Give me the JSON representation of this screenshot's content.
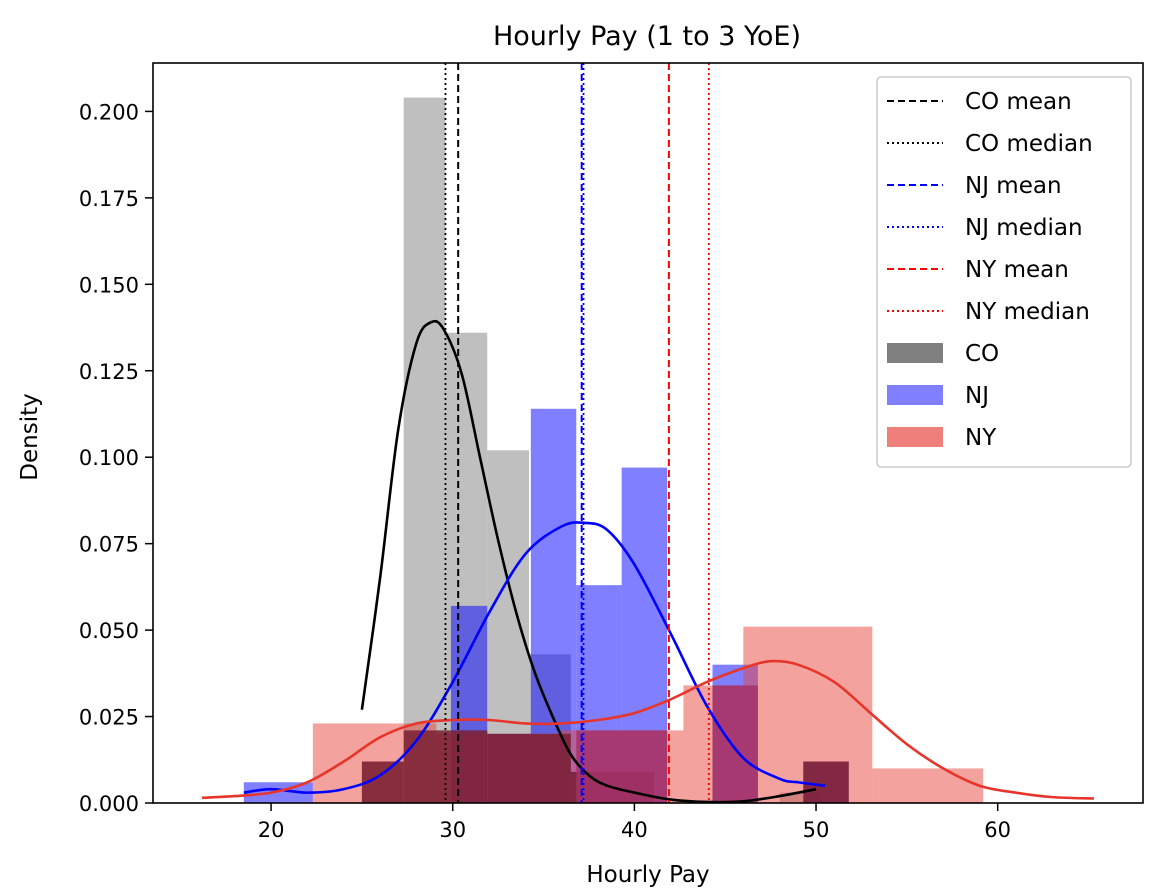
{
  "chart_data": {
    "type": "histogram",
    "title": "Hourly Pay (1 to 3 YoE)",
    "xlabel": "Hourly Pay",
    "ylabel": "Density",
    "xlim": [
      13.5,
      68
    ],
    "ylim": [
      0,
      0.214
    ],
    "xticks": [
      20,
      30,
      40,
      50,
      60
    ],
    "xtick_labels": [
      "20",
      "30",
      "40",
      "50",
      "60"
    ],
    "yticks": [
      0.0,
      0.025,
      0.05,
      0.075,
      0.1,
      0.125,
      0.15,
      0.175,
      0.2
    ],
    "ytick_labels": [
      "0.000",
      "0.025",
      "0.050",
      "0.075",
      "0.100",
      "0.125",
      "0.150",
      "0.175",
      "0.200"
    ],
    "grid": false,
    "legend_position": "top-right",
    "series": [
      {
        "name": "CO",
        "color": "#808080",
        "kde_color": "#000000",
        "bins": [
          {
            "x0": 25.0,
            "x1": 27.3,
            "density": 0.012
          },
          {
            "x0": 27.3,
            "x1": 29.6,
            "density": 0.204
          },
          {
            "x0": 29.6,
            "x1": 31.9,
            "density": 0.136
          },
          {
            "x0": 31.9,
            "x1": 34.2,
            "density": 0.102
          },
          {
            "x0": 34.2,
            "x1": 36.5,
            "density": 0.043
          },
          {
            "x0": 36.5,
            "x1": 38.8,
            "density": 0.009
          },
          {
            "x0": 38.8,
            "x1": 41.1,
            "density": 0.009
          },
          {
            "x0": 41.1,
            "x1": 43.4,
            "density": 0.0
          },
          {
            "x0": 43.4,
            "x1": 45.7,
            "density": 0.0
          },
          {
            "x0": 45.7,
            "x1": 48.0,
            "density": 0.0
          },
          {
            "x0": 48.0,
            "x1": 50.3,
            "density": 0.003
          }
        ],
        "kde": {
          "x": [
            25,
            26,
            27,
            28,
            28.8,
            29.5,
            30.5,
            31.5,
            32.5,
            33.5,
            34.5,
            35.5,
            36.5,
            37.5,
            38.5,
            40,
            42,
            44,
            46,
            48,
            50
          ],
          "y": [
            0.027,
            0.065,
            0.108,
            0.133,
            0.139,
            0.137,
            0.124,
            0.1,
            0.076,
            0.055,
            0.038,
            0.025,
            0.014,
            0.008,
            0.005,
            0.003,
            0.001,
            0.0003,
            0.0005,
            0.002,
            0.004
          ]
        },
        "mean": 30.3,
        "median": 29.6
      },
      {
        "name": "NJ",
        "color": "#0000ff",
        "kde_color": "#0000ff",
        "bins": [
          {
            "x0": 18.5,
            "x1": 22.3,
            "density": 0.006
          },
          {
            "x0": 22.3,
            "x1": 26.1,
            "density": 0.0
          },
          {
            "x0": 26.1,
            "x1": 29.9,
            "density": 0.0
          },
          {
            "x0": 29.9,
            "x1": 31.9,
            "density": 0.057
          },
          {
            "x0": 31.9,
            "x1": 34.3,
            "density": 0.02
          },
          {
            "x0": 34.3,
            "x1": 36.8,
            "density": 0.114
          },
          {
            "x0": 36.8,
            "x1": 39.3,
            "density": 0.063
          },
          {
            "x0": 39.3,
            "x1": 41.8,
            "density": 0.097
          },
          {
            "x0": 41.8,
            "x1": 44.3,
            "density": 0.0
          },
          {
            "x0": 44.3,
            "x1": 46.8,
            "density": 0.04
          },
          {
            "x0": 46.8,
            "x1": 49.3,
            "density": 0.0
          },
          {
            "x0": 49.3,
            "x1": 51.8,
            "density": 0.012
          }
        ],
        "kde": {
          "x": [
            18.5,
            20,
            22,
            24,
            26,
            28,
            30,
            32,
            34,
            36,
            37.3,
            38.5,
            40,
            42,
            44,
            46,
            48,
            49,
            50.5
          ],
          "y": [
            0.003,
            0.004,
            0.003,
            0.004,
            0.008,
            0.018,
            0.035,
            0.055,
            0.072,
            0.08,
            0.081,
            0.079,
            0.069,
            0.049,
            0.028,
            0.013,
            0.007,
            0.006,
            0.005
          ]
        },
        "mean": 37.1,
        "median": 37.2
      },
      {
        "name": "NY",
        "color": "#e8453c",
        "kde_color": "#e8352b",
        "bins": [
          {
            "x0": 22.3,
            "x1": 29.1,
            "density": 0.023
          },
          {
            "x0": 29.1,
            "x1": 35.9,
            "density": 0.02
          },
          {
            "x0": 35.9,
            "x1": 42.7,
            "density": 0.021
          },
          {
            "x0": 42.7,
            "x1": 46.0,
            "density": 0.034
          },
          {
            "x0": 46.0,
            "x1": 53.1,
            "density": 0.051
          },
          {
            "x0": 53.1,
            "x1": 59.2,
            "density": 0.01
          },
          {
            "x0": 59.2,
            "x1": 65.3,
            "density": 0.0
          }
        ],
        "kde": {
          "x": [
            16.2,
            18,
            20,
            22,
            24,
            26,
            28,
            30,
            32,
            34,
            36,
            38,
            40,
            42,
            44,
            46,
            47.5,
            49,
            51,
            53,
            55,
            57,
            59,
            61,
            63,
            65.3
          ],
          "y": [
            0.0015,
            0.002,
            0.003,
            0.006,
            0.012,
            0.019,
            0.023,
            0.024,
            0.024,
            0.023,
            0.023,
            0.024,
            0.026,
            0.03,
            0.035,
            0.039,
            0.041,
            0.04,
            0.035,
            0.026,
            0.017,
            0.01,
            0.005,
            0.003,
            0.0017,
            0.0013
          ]
        },
        "mean": 41.9,
        "median": 44.1
      }
    ],
    "overlap_bins": [
      {
        "x0": 25.0,
        "x1": 27.3,
        "density": 0.012,
        "color": "#7a1f33"
      },
      {
        "x0": 27.3,
        "x1": 29.9,
        "density": 0.021,
        "color": "#7a1f33"
      },
      {
        "x0": 29.9,
        "x1": 31.9,
        "density": 0.021,
        "color": "#7a1f33"
      },
      {
        "x0": 31.9,
        "x1": 34.2,
        "density": 0.02,
        "color": "#7a1f33"
      },
      {
        "x0": 34.2,
        "x1": 36.5,
        "density": 0.02,
        "color": "#7a1f33"
      },
      {
        "x0": 36.5,
        "x1": 38.8,
        "density": 0.009,
        "color": "#7a1f33"
      },
      {
        "x0": 38.8,
        "x1": 41.1,
        "density": 0.009,
        "color": "#7a1f33"
      },
      {
        "x0": 36.8,
        "x1": 41.8,
        "density": 0.021,
        "color": "#a3326a"
      },
      {
        "x0": 44.3,
        "x1": 46.8,
        "density": 0.034,
        "color": "#a3326a"
      },
      {
        "x0": 49.3,
        "x1": 51.8,
        "density": 0.012,
        "color": "#7a1f33"
      }
    ],
    "legend": [
      {
        "label": "CO mean",
        "kind": "line",
        "color": "#000000",
        "dash": "dashed"
      },
      {
        "label": "CO median",
        "kind": "line",
        "color": "#000000",
        "dash": "dotted"
      },
      {
        "label": "NJ mean",
        "kind": "line",
        "color": "#0000ff",
        "dash": "dashed"
      },
      {
        "label": "NJ median",
        "kind": "line",
        "color": "#0000ff",
        "dash": "dotted"
      },
      {
        "label": "NY mean",
        "kind": "line",
        "color": "#ff0000",
        "dash": "dashed"
      },
      {
        "label": "NY median",
        "kind": "line",
        "color": "#ff0000",
        "dash": "dotted"
      },
      {
        "label": "CO",
        "kind": "patch",
        "color": "#808080"
      },
      {
        "label": "NJ",
        "kind": "patch",
        "color": "#7f7fff"
      },
      {
        "label": "NY",
        "kind": "patch",
        "color": "#ef7f7a"
      }
    ]
  }
}
